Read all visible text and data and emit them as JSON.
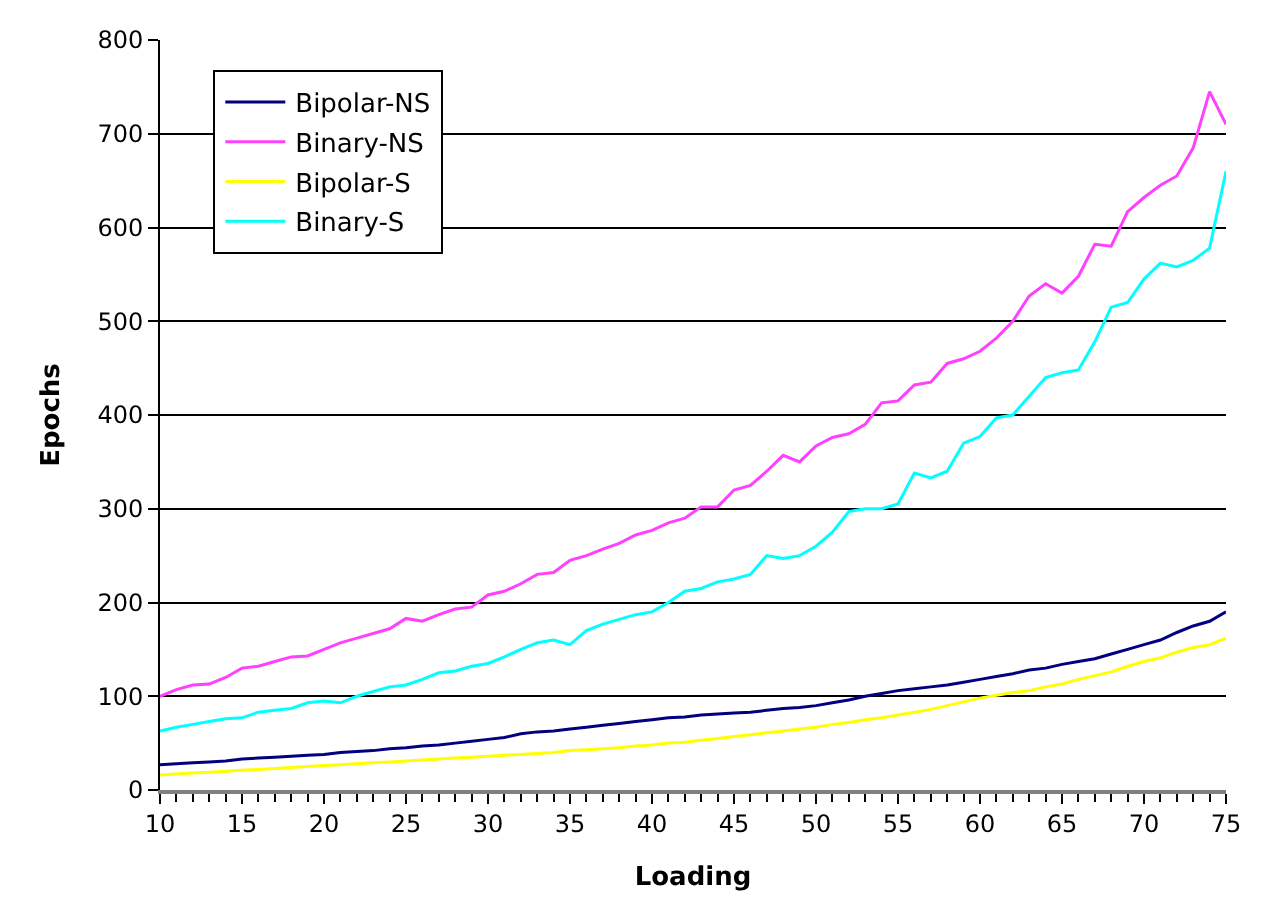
{
  "chart_data": {
    "type": "line",
    "xlabel": "Loading",
    "ylabel": "Epochs",
    "x": [
      10,
      11,
      12,
      13,
      14,
      15,
      16,
      17,
      18,
      19,
      20,
      21,
      22,
      23,
      24,
      25,
      26,
      27,
      28,
      29,
      30,
      31,
      32,
      33,
      34,
      35,
      36,
      37,
      38,
      39,
      40,
      41,
      42,
      43,
      44,
      45,
      46,
      47,
      48,
      49,
      50,
      51,
      52,
      53,
      54,
      55,
      56,
      57,
      58,
      59,
      60,
      61,
      62,
      63,
      64,
      65,
      66,
      67,
      68,
      69,
      70,
      71,
      72,
      73,
      74,
      75
    ],
    "series": [
      {
        "name": "Bipolar-NS",
        "color": "#000080",
        "values": [
          27,
          28,
          29,
          30,
          31,
          33,
          34,
          35,
          36,
          37,
          38,
          40,
          41,
          42,
          44,
          45,
          47,
          48,
          50,
          52,
          54,
          56,
          60,
          62,
          63,
          65,
          67,
          69,
          71,
          73,
          75,
          77,
          78,
          80,
          81,
          82,
          83,
          85,
          87,
          88,
          90,
          93,
          96,
          100,
          103,
          106,
          108,
          110,
          112,
          115,
          118,
          121,
          124,
          128,
          130,
          134,
          137,
          140,
          145,
          150,
          155,
          160,
          168,
          175,
          180,
          190
        ]
      },
      {
        "name": "Binary-NS",
        "color": "#ff40ff",
        "values": [
          100,
          107,
          112,
          113,
          120,
          130,
          132,
          137,
          142,
          143,
          150,
          157,
          162,
          167,
          172,
          183,
          180,
          187,
          193,
          195,
          208,
          212,
          220,
          230,
          232,
          245,
          250,
          257,
          263,
          272,
          277,
          285,
          290,
          302,
          302,
          320,
          325,
          340,
          357,
          350,
          367,
          376,
          380,
          390,
          413,
          415,
          432,
          435,
          455,
          460,
          468,
          482,
          500,
          527,
          540,
          530,
          548,
          582,
          580,
          617,
          632,
          645,
          655,
          685,
          745,
          710
        ]
      },
      {
        "name": "Bipolar-S",
        "color": "#ffff00",
        "values": [
          16,
          17,
          18,
          19,
          20,
          21,
          22,
          23,
          24,
          25,
          26,
          27,
          28,
          29,
          30,
          31,
          32,
          33,
          34,
          35,
          36,
          37,
          38,
          39,
          40,
          42,
          43,
          44,
          45,
          47,
          48,
          50,
          51,
          53,
          55,
          57,
          59,
          61,
          63,
          65,
          67,
          70,
          72,
          75,
          77,
          80,
          83,
          86,
          90,
          94,
          98,
          101,
          104,
          106,
          110,
          113,
          118,
          122,
          126,
          132,
          137,
          141,
          147,
          152,
          155,
          162
        ]
      },
      {
        "name": "Binary-S",
        "color": "#00ffff",
        "values": [
          63,
          67,
          70,
          73,
          76,
          77,
          83,
          85,
          87,
          93,
          95,
          93,
          100,
          105,
          110,
          112,
          118,
          125,
          127,
          132,
          135,
          142,
          150,
          157,
          160,
          155,
          170,
          177,
          182,
          187,
          190,
          200,
          212,
          215,
          222,
          225,
          230,
          250,
          247,
          250,
          260,
          275,
          297,
          300,
          300,
          305,
          338,
          333,
          340,
          370,
          377,
          397,
          400,
          420,
          440,
          445,
          448,
          478,
          515,
          520,
          545,
          562,
          558,
          565,
          578,
          660
        ]
      }
    ],
    "xlim": [
      10,
      75
    ],
    "xticks": [
      10,
      15,
      20,
      25,
      30,
      35,
      40,
      45,
      50,
      55,
      60,
      65,
      70,
      75
    ],
    "ylim": [
      0,
      800
    ],
    "yticks": [
      0,
      100,
      200,
      300,
      400,
      500,
      600,
      700,
      800
    ],
    "grid": "y",
    "legend": "top left",
    "marker": "none",
    "line_style": "solid"
  }
}
